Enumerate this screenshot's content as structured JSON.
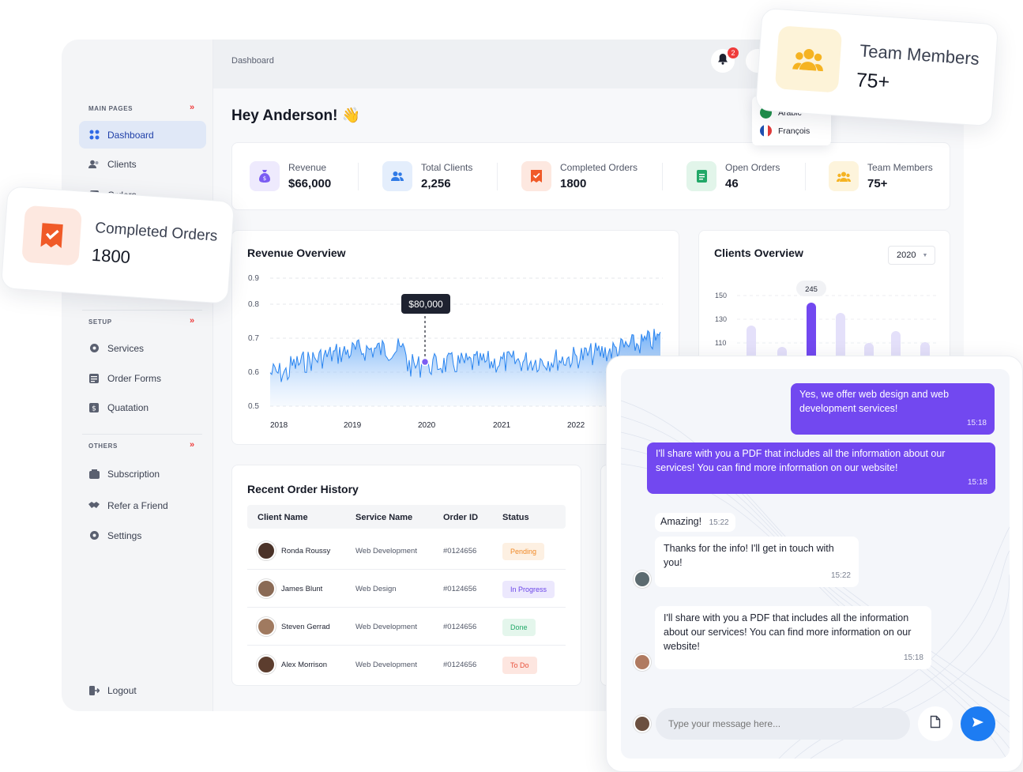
{
  "topbar": {
    "breadcrumb": "Dashboard",
    "notification_count": "2"
  },
  "languages": [
    {
      "label": "Arabic"
    },
    {
      "label": "François"
    }
  ],
  "sidebar": {
    "sections": [
      {
        "label": "MAIN PAGES"
      },
      {
        "label": "SETUP"
      },
      {
        "label": "OTHERS"
      }
    ],
    "items": [
      {
        "label": "Dashboard"
      },
      {
        "label": "Clients"
      },
      {
        "label": "Orders"
      },
      {
        "label": "Services"
      },
      {
        "label": "Order Forms"
      },
      {
        "label": "Quatation"
      },
      {
        "label": "Subscription"
      },
      {
        "label": "Refer a Friend"
      },
      {
        "label": "Settings"
      }
    ],
    "logout": "Logout"
  },
  "greeting": "Hey Anderson! 👋",
  "stats": [
    {
      "label": "Revenue",
      "value": "$66,000",
      "color": "#7b5cf2"
    },
    {
      "label": "Total Clients",
      "value": "2,256",
      "color": "#2f7ae6"
    },
    {
      "label": "Completed Orders",
      "value": "1800",
      "color": "#f05a28"
    },
    {
      "label": "Open Orders",
      "value": "46",
      "color": "#22a868"
    },
    {
      "label": "Team Members",
      "value": "75+",
      "color": "#f5b322"
    }
  ],
  "revenue": {
    "title": "Revenue Overview",
    "tooltip": "$80,000",
    "y_ticks": [
      "0.9",
      "0.8",
      "0.7",
      "0.6",
      "0.5"
    ],
    "x_ticks": [
      "2018",
      "2019",
      "2020",
      "2021",
      "2022"
    ]
  },
  "clients": {
    "title": "Clients Overview",
    "year": "2020",
    "y_ticks": [
      "150",
      "130",
      "110"
    ],
    "highlight_label": "245"
  },
  "orders": {
    "title": "Recent Order History",
    "columns": [
      "Client Name",
      "Service Name",
      "Order ID",
      "Status"
    ],
    "rows": [
      {
        "client": "Ronda Roussy",
        "service": "Web Development",
        "id": "#0124656",
        "status": "Pending",
        "bg": "#fdf0e2",
        "fg": "#f08a28"
      },
      {
        "client": "James Blunt",
        "service": "Web Design",
        "id": "#0124656",
        "status": "In Progress",
        "bg": "#ece8fd",
        "fg": "#6a44e8"
      },
      {
        "client": "Steven Gerrad",
        "service": "Web Development",
        "id": "#0124656",
        "status": "Done",
        "bg": "#e4f6ec",
        "fg": "#22a868"
      },
      {
        "client": "Alex Morrison",
        "service": "Web Development",
        "id": "#0124656",
        "status": "To Do",
        "bg": "#fde6e0",
        "fg": "#e8503a"
      }
    ]
  },
  "float_completed": {
    "label": "Completed Orders",
    "value": "1800"
  },
  "float_team": {
    "label": "Team Members",
    "value": "75+"
  },
  "chat": {
    "messages": [
      {
        "text": "Yes, we offer web design and web development services!",
        "time": "15:18"
      },
      {
        "text": "I'll share with you a PDF that includes all the information about our services! You can find more information on our website!",
        "time": "15:18"
      },
      {
        "text": "Amazing!",
        "time": "15:22"
      },
      {
        "text": "Thanks for the info! I'll get in touch with you!",
        "time": "15:22"
      },
      {
        "text": "I'll share with you a PDF that includes all the information about our services! You can find more information on our website!",
        "time": "15:18"
      }
    ],
    "input_placeholder": "Type your message here..."
  }
}
